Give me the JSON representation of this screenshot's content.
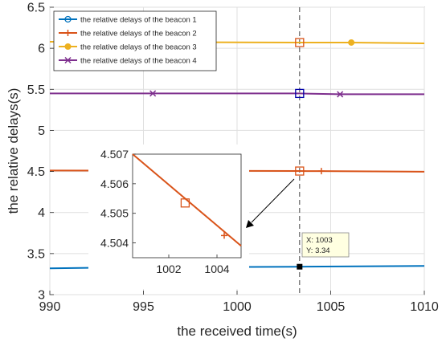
{
  "chart_data": {
    "type": "line",
    "xlabel": "the received time(s)",
    "ylabel": "the relative delays(s)",
    "xlim": [
      990,
      1010
    ],
    "ylim": [
      3,
      6.5
    ],
    "xticks": [
      990,
      995,
      1000,
      1005,
      1010
    ],
    "yticks": [
      3,
      3.5,
      4,
      4.5,
      5,
      5.5,
      6,
      6.5
    ],
    "grid": true,
    "legend_position": "top-left",
    "series": [
      {
        "name": "the relative delays of the beacon 1",
        "color": "#0072bd",
        "marker": "circle",
        "x": [
          990,
          993.3,
          1003.34,
          1010
        ],
        "y": [
          3.32,
          3.33,
          3.34,
          3.35
        ],
        "marker_x": [
          993.3
        ]
      },
      {
        "name": "the relative delays of the beacon 2",
        "color": "#d95319",
        "marker": "plus",
        "x": [
          990,
          1003.34,
          1004.5,
          1010
        ],
        "y": [
          4.512,
          4.505,
          4.504,
          4.497
        ],
        "marker_x": [
          1004.5
        ]
      },
      {
        "name": "the relative delays of the beacon 3",
        "color": "#edb120",
        "marker": "dot",
        "x": [
          990,
          1003.34,
          1006.1,
          1010
        ],
        "y": [
          6.08,
          6.07,
          6.07,
          6.06
        ],
        "marker_x": [
          1006.1
        ]
      },
      {
        "name": "the relative delays of the beacon 4",
        "color": "#7e2f8e",
        "marker": "x",
        "x": [
          990,
          995.5,
          1003.34,
          1005.5,
          1010
        ],
        "y": [
          5.45,
          5.45,
          5.45,
          5.44,
          5.44
        ],
        "marker_x": [
          995.5,
          1005.5
        ]
      }
    ],
    "vertical_line_x": 1003.34,
    "highlight_squares": [
      {
        "x": 1003.34,
        "y": 6.07,
        "color": "#d95319"
      },
      {
        "x": 1003.34,
        "y": 5.45,
        "color": "#0000aa"
      },
      {
        "x": 1003.34,
        "y": 4.505,
        "color": "#d95319"
      }
    ],
    "datatip": {
      "x": 1003.34,
      "y": 3.34,
      "line1": "X: 1003",
      "line2": "Y: 3.34"
    },
    "inset": {
      "xlim": [
        1000.5,
        1005
      ],
      "ylim": [
        4.5035,
        4.507
      ],
      "xticks": [
        1002,
        1004
      ],
      "yticks": [
        4.504,
        4.505,
        4.506,
        4.507
      ],
      "series": {
        "color": "#d95319",
        "x": [
          1000.5,
          1005
        ],
        "y": [
          4.507,
          4.5039
        ]
      },
      "square": {
        "x": 1002.68,
        "y": 4.50535
      },
      "plus": {
        "x": 1004.3,
        "y": 4.50425
      }
    }
  }
}
